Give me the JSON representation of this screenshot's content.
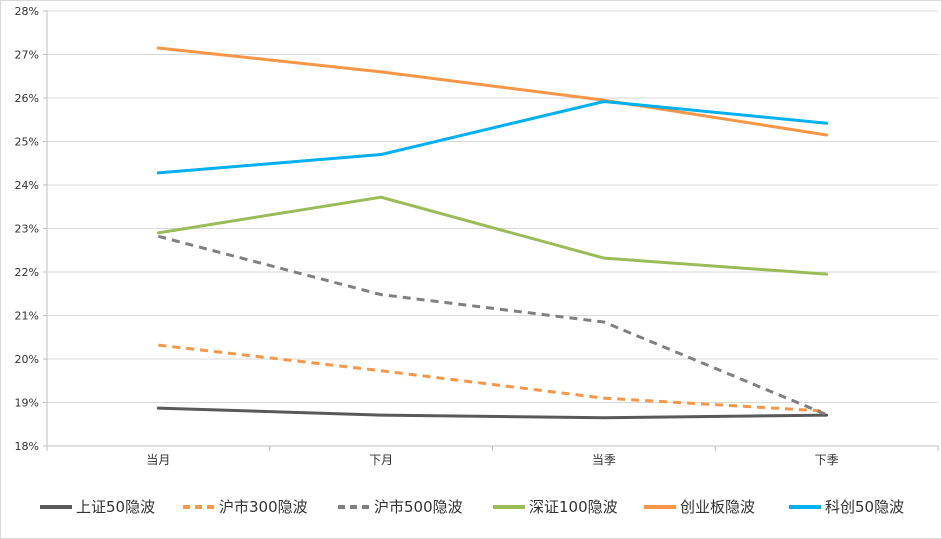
{
  "chart_data": {
    "type": "line",
    "categories": [
      "当月",
      "下月",
      "当季",
      "下季"
    ],
    "y_tick_labels": [
      "18%",
      "19%",
      "20%",
      "21%",
      "22%",
      "23%",
      "24%",
      "25%",
      "26%",
      "27%",
      "28%"
    ],
    "ylim": [
      18,
      28
    ],
    "y_unit": "%",
    "grid": "horizontal",
    "legend_position": "bottom",
    "series": [
      {
        "name": "上证50隐波",
        "values": [
          18.87,
          18.71,
          18.65,
          18.71
        ],
        "color": "#595959",
        "dash": "solid"
      },
      {
        "name": "沪市300隐波",
        "values": [
          20.32,
          19.73,
          19.1,
          18.8
        ],
        "color": "#f79646",
        "dash": "dashed"
      },
      {
        "name": "沪市500隐波",
        "values": [
          22.82,
          21.48,
          20.85,
          18.72
        ],
        "color": "#808080",
        "dash": "dashed"
      },
      {
        "name": "深证100隐波",
        "values": [
          22.9,
          23.72,
          22.32,
          21.95
        ],
        "color": "#9bbb59",
        "dash": "solid"
      },
      {
        "name": "创业板隐波",
        "values": [
          27.15,
          26.6,
          25.95,
          25.15
        ],
        "color": "#f79646",
        "dash": "solid"
      },
      {
        "name": "科创50隐波",
        "values": [
          24.28,
          24.7,
          25.92,
          25.42
        ],
        "color": "#00b0f0",
        "dash": "solid"
      }
    ]
  }
}
